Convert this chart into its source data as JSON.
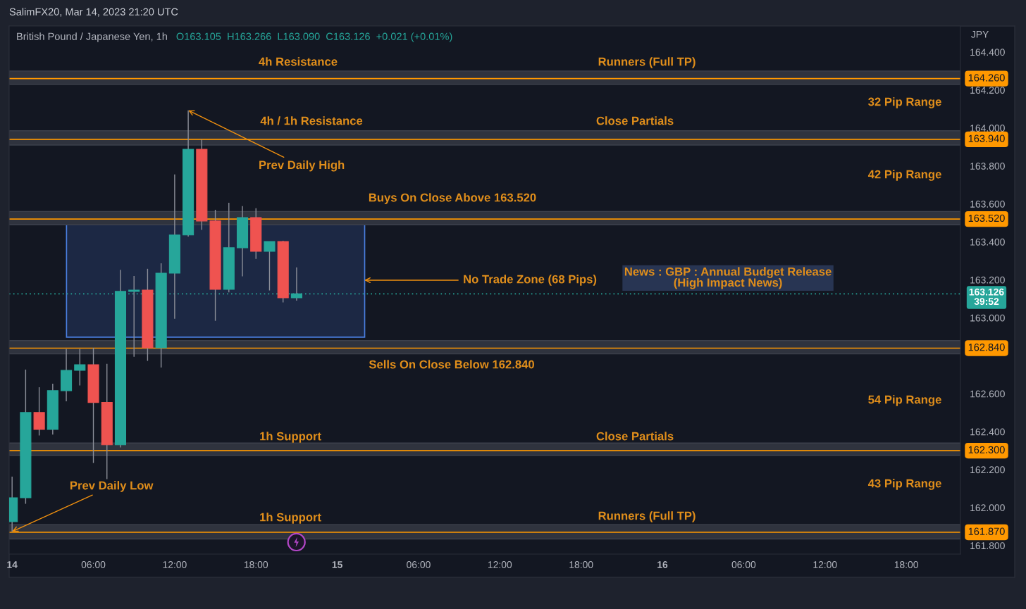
{
  "chart_data": {
    "type": "candlestick",
    "title": "British Pound / Japanese Yen, 1h",
    "subtitle": "O163.105  H163.266  L163.090  C163.126  +0.021 (+0.01%)",
    "ylabel": "JPY",
    "x": [
      "2023-03-14T00:00",
      "2023-03-14T01:00",
      "2023-03-14T02:00",
      "2023-03-14T03:00",
      "2023-03-14T04:00",
      "2023-03-14T05:00",
      "2023-03-14T06:00",
      "2023-03-14T07:00",
      "2023-03-14T08:00",
      "2023-03-14T09:00",
      "2023-03-14T10:00",
      "2023-03-14T11:00",
      "2023-03-14T12:00",
      "2023-03-14T13:00",
      "2023-03-14T14:00",
      "2023-03-14T15:00",
      "2023-03-14T16:00",
      "2023-03-14T17:00",
      "2023-03-14T18:00",
      "2023-03-14T19:00",
      "2023-03-14T20:00",
      "2023-03-14T21:00"
    ],
    "ohlc": [
      [
        161.926,
        162.163,
        161.874,
        162.052
      ],
      [
        162.052,
        162.727,
        162.02,
        162.501
      ],
      [
        162.501,
        162.634,
        162.38,
        162.412
      ],
      [
        162.412,
        162.653,
        162.385,
        162.616
      ],
      [
        162.616,
        162.835,
        162.56,
        162.723
      ],
      [
        162.723,
        162.835,
        162.643,
        162.753
      ],
      [
        162.753,
        162.842,
        162.235,
        162.554
      ],
      [
        162.554,
        162.757,
        162.15,
        162.331
      ],
      [
        162.331,
        163.253,
        162.317,
        163.139
      ],
      [
        163.139,
        163.22,
        162.795,
        163.146
      ],
      [
        163.146,
        163.258,
        162.773,
        162.842
      ],
      [
        162.842,
        163.287,
        162.738,
        163.235
      ],
      [
        163.235,
        163.755,
        162.995,
        163.436
      ],
      [
        163.436,
        164.093,
        163.428,
        163.888
      ],
      [
        163.888,
        163.94,
        163.463,
        163.51
      ],
      [
        163.51,
        163.569,
        162.984,
        163.15
      ],
      [
        163.15,
        163.606,
        163.134,
        163.369
      ],
      [
        163.369,
        163.588,
        163.218,
        163.528
      ],
      [
        163.528,
        163.577,
        163.31,
        163.35
      ],
      [
        163.35,
        163.402,
        163.144,
        163.402
      ],
      [
        163.402,
        163.406,
        163.081,
        163.105
      ],
      [
        163.105,
        163.266,
        163.09,
        163.126
      ]
    ],
    "colors": [
      "#26a69a",
      "#26a69a",
      "#ef5350",
      "#26a69a",
      "#26a69a",
      "#26a69a",
      "#ef5350",
      "#ef5350",
      "#26a69a",
      "#26a69a",
      "#ef5350",
      "#26a69a",
      "#26a69a",
      "#26a69a",
      "#ef5350",
      "#ef5350",
      "#26a69a",
      "#26a69a",
      "#ef5350",
      "#26a69a",
      "#ef5350",
      "#26a69a"
    ],
    "xlim": [
      "2023-03-13T23:47",
      "2023-03-16T22:00"
    ],
    "ylim": [
      161.755,
      164.537
    ],
    "xticks": [
      {
        "value": "2023-03-14T00:00",
        "label": "14"
      },
      {
        "value": "2023-03-14T06:00",
        "label": "06:00"
      },
      {
        "value": "2023-03-14T12:00",
        "label": "12:00"
      },
      {
        "value": "2023-03-14T18:00",
        "label": "18:00"
      },
      {
        "value": "2023-03-15T00:00",
        "label": "15"
      },
      {
        "value": "2023-03-15T06:00",
        "label": "06:00"
      },
      {
        "value": "2023-03-15T12:00",
        "label": "12:00"
      },
      {
        "value": "2023-03-15T18:00",
        "label": "18:00"
      },
      {
        "value": "2023-03-16T00:00",
        "label": "16"
      },
      {
        "value": "2023-03-16T06:00",
        "label": "06:00"
      },
      {
        "value": "2023-03-16T12:00",
        "label": "12:00"
      },
      {
        "value": "2023-03-16T18:00",
        "label": "18:00"
      }
    ],
    "yticks": [
      {
        "value": 161.8,
        "label": "161.800"
      },
      {
        "value": 162.0,
        "label": "162.000"
      },
      {
        "value": 162.2,
        "label": "162.200"
      },
      {
        "value": 162.4,
        "label": "162.400"
      },
      {
        "value": 162.6,
        "label": "162.600"
      },
      {
        "value": 163.0,
        "label": "163.000"
      },
      {
        "value": 163.2,
        "label": "163.200"
      },
      {
        "value": 163.4,
        "label": "163.400"
      },
      {
        "value": 163.6,
        "label": "163.600"
      },
      {
        "value": 163.8,
        "label": "163.800"
      },
      {
        "value": 164.0,
        "label": "164.000"
      },
      {
        "value": 164.2,
        "label": "164.200"
      },
      {
        "value": 164.4,
        "label": "164.400"
      }
    ],
    "bands": [
      {
        "axis": "y",
        "from": 164.23,
        "to": 164.3,
        "color": "#2f333e"
      },
      {
        "axis": "y",
        "from": 163.91,
        "to": 163.985,
        "color": "#2f333e"
      },
      {
        "axis": "y",
        "from": 163.49,
        "to": 163.56,
        "color": "#2f333e"
      },
      {
        "axis": "y",
        "from": 162.81,
        "to": 162.88,
        "color": "#2f333e"
      },
      {
        "axis": "y",
        "from": 162.275,
        "to": 162.34,
        "color": "#2f333e"
      },
      {
        "axis": "y",
        "from": 161.835,
        "to": 161.91,
        "color": "#2f333e"
      },
      {
        "axis": "y",
        "from": 162.898,
        "to": 163.49,
        "color": "#1c2844"
      }
    ],
    "ref_lines": [
      {
        "axis": "y",
        "value": 164.26,
        "label": "164.260",
        "color": "#ff9800"
      },
      {
        "axis": "y",
        "value": 163.94,
        "label": "163.940",
        "color": "#ff9800"
      },
      {
        "axis": "y",
        "value": 163.52,
        "label": "163.520",
        "color": "#ff9800"
      },
      {
        "axis": "y",
        "value": 163.126,
        "label": "163.126\n39:52",
        "color": "#26a69a",
        "line_style": "dotted"
      },
      {
        "axis": "y",
        "value": 162.84,
        "label": "162.840",
        "color": "#ff9800"
      },
      {
        "axis": "y",
        "value": 162.3,
        "label": "162.300",
        "color": "#ff9800"
      },
      {
        "axis": "y",
        "value": 161.87,
        "label": "161.870",
        "color": "#ff9800"
      }
    ],
    "annotations": [
      "4h Resistance",
      "Runners (Full TP)",
      "32 Pip Range",
      "4h / 1h Resistance",
      "Close Partials",
      {
        "text": "Prev Daily High",
        "x": "2023-03-14T13:00",
        "y": 164.093
      },
      "42 Pip Range",
      "Buys On Close Above 163.520",
      {
        "text": "No Trade Zone (68 Pips)",
        "x": "2023-03-15T02:00",
        "y": 163.198
      },
      "News : GBP : Annual Budget Release\n(High Impact News)",
      "Sells On Close Below 162.840",
      "54 Pip Range",
      "1h Support",
      "Close Partials",
      {
        "text": "Prev Daily Low",
        "x": "2023-03-14T00:00",
        "y": 161.874
      },
      "43 Pip Range",
      "1h Support",
      "Runners (Full TP)",
      "SalimFX20, Mar 14, 2023 21:20 UTC"
    ]
  }
}
